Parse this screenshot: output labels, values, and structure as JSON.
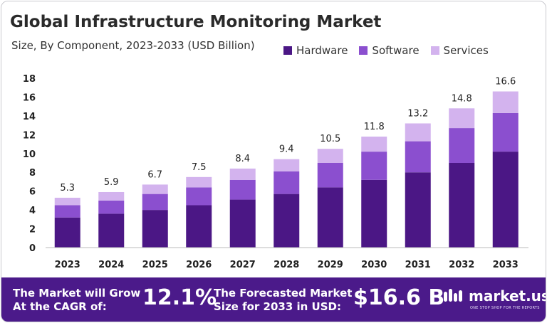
{
  "colors": {
    "hardware": "#4b1785",
    "software": "#8b4fcf",
    "services": "#d3b3ee",
    "footer_bg": "#4b1a8a"
  },
  "chart_data": {
    "type": "bar",
    "stacked": true,
    "title": "Global Infrastructure Monitoring Market",
    "subtitle": "Size, By Component, 2023-2033 (USD Billion)",
    "categories": [
      "2023",
      "2024",
      "2025",
      "2026",
      "2027",
      "2028",
      "2029",
      "2030",
      "2031",
      "2032",
      "2033"
    ],
    "series": [
      {
        "name": "Hardware",
        "values": [
          3.2,
          3.6,
          4.0,
          4.5,
          5.1,
          5.7,
          6.4,
          7.2,
          8.0,
          9.0,
          10.2
        ]
      },
      {
        "name": "Software",
        "values": [
          1.3,
          1.4,
          1.7,
          1.9,
          2.1,
          2.4,
          2.6,
          3.0,
          3.3,
          3.7,
          4.1
        ]
      },
      {
        "name": "Services",
        "values": [
          0.8,
          0.9,
          1.0,
          1.1,
          1.2,
          1.3,
          1.5,
          1.6,
          1.9,
          2.1,
          2.3
        ]
      }
    ],
    "totals": [
      "5.3",
      "5.9",
      "6.7",
      "7.5",
      "8.4",
      "9.4",
      "10.5",
      "11.8",
      "13.2",
      "14.8",
      "16.6"
    ],
    "ylim": [
      0,
      18
    ],
    "yticks": [
      0,
      2,
      4,
      6,
      8,
      10,
      12,
      14,
      16,
      18
    ],
    "grid": false,
    "legend_position": "top-right"
  },
  "footer": {
    "cagr_label_line1": "The Market will Grow",
    "cagr_label_line2": "At the CAGR of:",
    "cagr_value": "12.1%",
    "forecast_label_line1": "The Forecasted Market",
    "forecast_label_line2": "Size for 2033 in USD:",
    "forecast_value": "$16.6 B",
    "brand_name": "market.us",
    "brand_tagline": "ONE STOP SHOP FOR THE REPORTS"
  }
}
